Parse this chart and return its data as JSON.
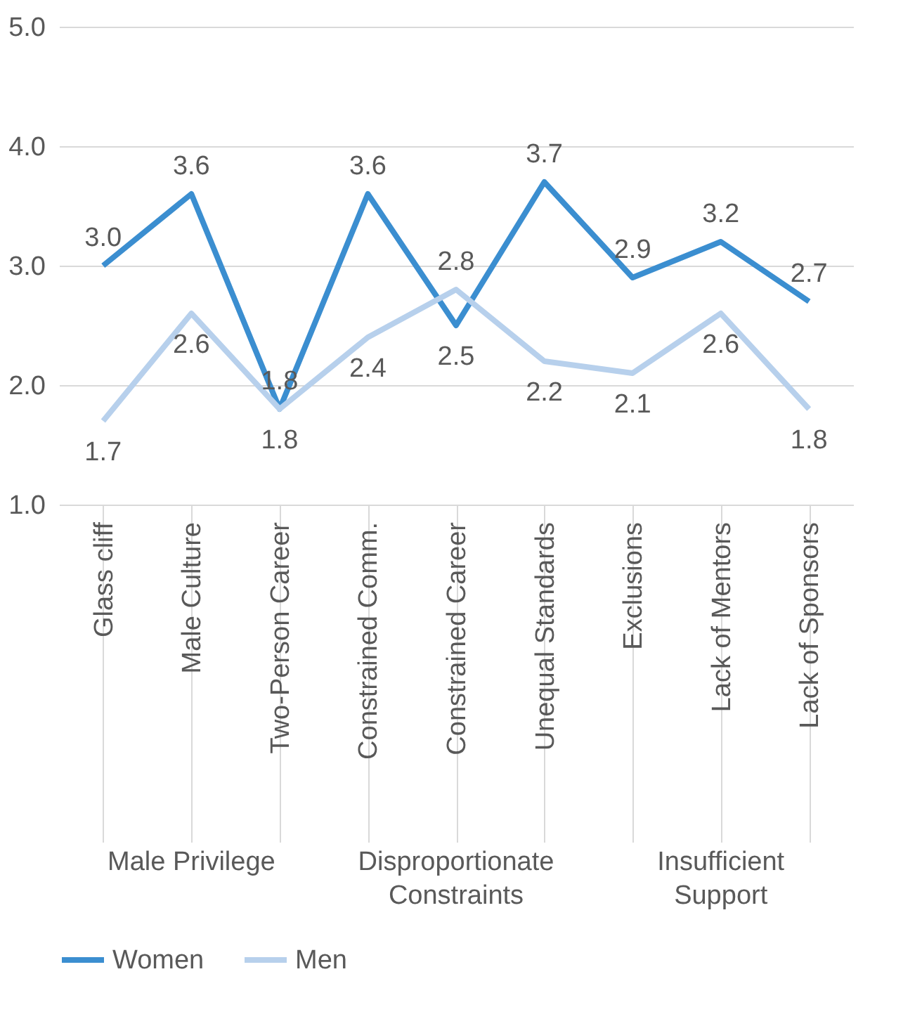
{
  "chart_data": {
    "type": "line",
    "categories": [
      "Glass cliff",
      "Male Culture",
      "Two-Person Career",
      "Constrained Comm.",
      "Constrained Career",
      "Unequal Standards",
      "Exclusions",
      "Lack of Mentors",
      "Lack of Sponsors"
    ],
    "series": [
      {
        "name": "Women",
        "color": "#3b8ed0",
        "values": [
          3.0,
          3.6,
          1.8,
          3.6,
          2.5,
          3.7,
          2.9,
          3.2,
          2.7
        ],
        "value_labels": [
          "3.0",
          "3.6",
          "1.8",
          "3.6",
          "2.5",
          "3.7",
          "2.9",
          "3.2",
          "2.7"
        ]
      },
      {
        "name": "Men",
        "color": "#b7d0ec",
        "values": [
          1.7,
          2.6,
          1.8,
          2.4,
          2.8,
          2.2,
          2.1,
          2.6,
          1.8
        ],
        "value_labels": [
          "1.7",
          "2.6",
          "1.8",
          "2.4",
          "2.8",
          "2.2",
          "2.1",
          "2.6",
          "1.8"
        ]
      }
    ],
    "ylim": [
      1,
      5
    ],
    "yticks": [
      {
        "value": 1,
        "label": "1.0"
      },
      {
        "value": 2,
        "label": "2.0"
      },
      {
        "value": 3,
        "label": "3.0"
      },
      {
        "value": 4,
        "label": "4.0"
      },
      {
        "value": 5,
        "label": "5.0"
      }
    ],
    "annotations": [
      {
        "text": "Male Privilege",
        "x": "Male Culture"
      },
      {
        "text": "Disproportionate Constraints",
        "x": "Constrained Career"
      },
      {
        "text": "Insufficient Support",
        "x": "Lack of Mentors"
      }
    ],
    "grid": "y",
    "legend": "bottom",
    "marker": "none",
    "line_style": "solid"
  }
}
